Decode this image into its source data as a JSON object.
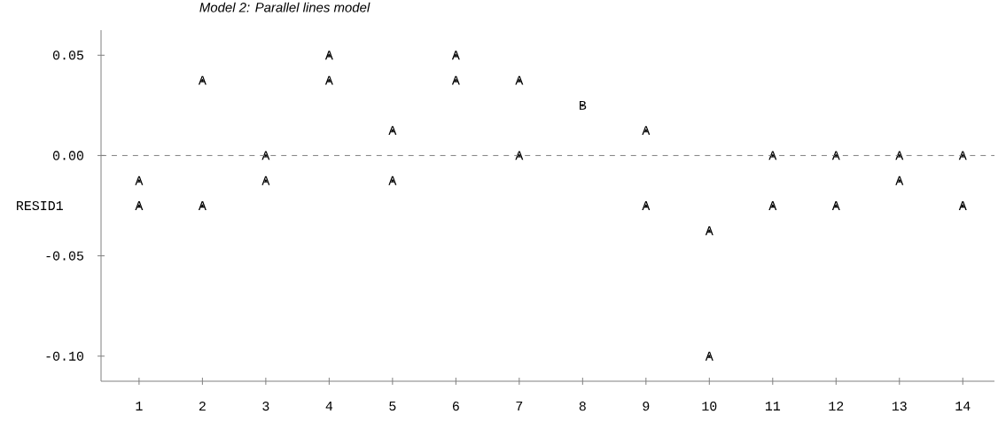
{
  "chart_data": {
    "type": "scatter",
    "title": "*Model 2: Parallel lines model*",
    "ylabel": "RESID1",
    "x": [
      1,
      1,
      2,
      2,
      3,
      3,
      4,
      4,
      5,
      5,
      6,
      6,
      7,
      7,
      8,
      9,
      9,
      10,
      10,
      11,
      11,
      12,
      12,
      13,
      13,
      14,
      14
    ],
    "values": [
      -0.0125,
      -0.025,
      0.0375,
      -0.025,
      0,
      -0.0125,
      0.05,
      0.0375,
      0.0125,
      -0.0125,
      0.05,
      0.0375,
      0.0375,
      0,
      0.025,
      0.0125,
      -0.025,
      -0.0375,
      -0.1,
      0,
      -0.025,
      0,
      -0.025,
      0,
      -0.0125,
      0,
      -0.025
    ],
    "value_labels": [
      "A",
      "A",
      "A",
      "A",
      "A",
      "A",
      "A",
      "A",
      "A",
      "A",
      "A",
      "A",
      "A",
      "A",
      "B",
      "A",
      "A",
      "A",
      "A",
      "A",
      "A",
      "A",
      "A",
      "A",
      "A",
      "A",
      "A"
    ],
    "xlim": [
      0.4,
      14.5
    ],
    "xticks": [
      1,
      2,
      3,
      4,
      5,
      6,
      7,
      8,
      9,
      10,
      11,
      12,
      13,
      14
    ],
    "ylim": [
      -0.1125,
      0.0625
    ],
    "yticks": [
      0.05,
      {
        "value": 0,
        "label": "0.00"
      },
      -0.05,
      {
        "value": -0.1,
        "label": "-0.10"
      }
    ],
    "ref_lines": [
      {
        "axis": "y",
        "value": 0,
        "line_style": "dashed"
      }
    ]
  }
}
